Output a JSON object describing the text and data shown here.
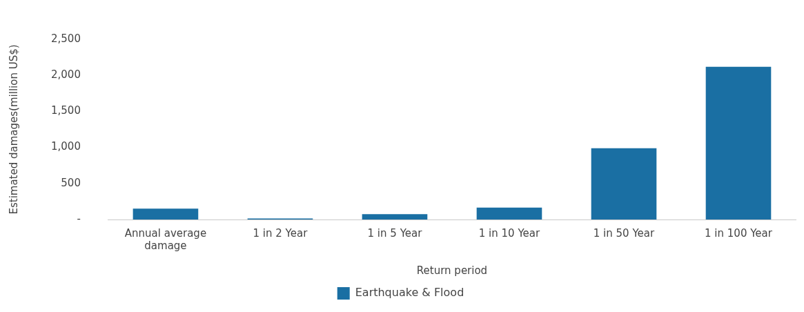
{
  "chart_data": {
    "type": "bar",
    "xlabel": "Return period",
    "ylabel": "Estimated damages(million US$)",
    "categories": [
      "Annual average damage",
      "1 in 2 Year",
      "1 in 5 Year",
      "1 in 10 Year",
      "1 in 50 Year",
      "1 in 100 Year"
    ],
    "series": [
      {
        "name": "Earthquake & Flood",
        "color": "#1a6fa3",
        "values": [
          150,
          15,
          75,
          165,
          990,
          2120
        ]
      }
    ],
    "ylim": [
      0,
      2500
    ],
    "yticks": [
      {
        "value": 0,
        "label": "-"
      },
      500,
      {
        "value": 1000,
        "label": "1,000"
      },
      {
        "value": 1500,
        "label": "1,500"
      },
      {
        "value": 2000,
        "label": "2,000"
      },
      {
        "value": 2500,
        "label": "2,500"
      }
    ],
    "grid": false,
    "legend": "bottom"
  }
}
